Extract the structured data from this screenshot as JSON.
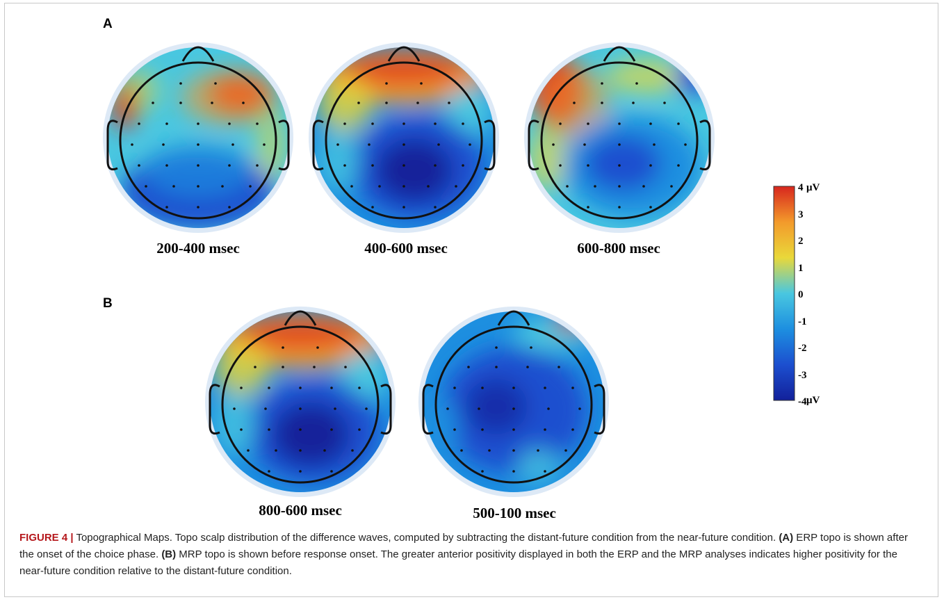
{
  "panels": {
    "a_label": "A",
    "b_label": "B"
  },
  "topomaps": [
    {
      "caption": "200-400 msec",
      "pattern": "frontal-right-positive"
    },
    {
      "caption": "400-600 msec",
      "pattern": "frontal-positive-central-negative"
    },
    {
      "caption": "600-800 msec",
      "pattern": "left-frontal-positive"
    },
    {
      "caption": "800-600 msec",
      "pattern": "frontal-positive-central-negative"
    },
    {
      "caption": "500-100 msec",
      "pattern": "mostly-negative"
    }
  ],
  "colorbar": {
    "ticks": [
      "4",
      "3",
      "2",
      "1",
      "0",
      "-1",
      "-2",
      "-3",
      "-4"
    ],
    "unit": "μV",
    "colors": [
      "#d7261e",
      "#f39a2b",
      "#e9d83a",
      "#49c7e0",
      "#1d8fe0",
      "#1c4fcf",
      "#12209a"
    ]
  },
  "caption": {
    "figure_number": "FIGURE 4 |",
    "text1": " Topographical Maps. Topo scalp distribution of the difference waves, computed by subtracting the distant-future condition from the near-future condition. ",
    "a_ref": "(A)",
    "text2": " ERP topo is shown after the onset of the choice phase. ",
    "b_ref": "(B)",
    "text3": " MRP topo is shown before response onset. The greater anterior positivity displayed in both the ERP and the MRP analyses indicates higher positivity for the near-future condition relative to the distant-future condition."
  }
}
